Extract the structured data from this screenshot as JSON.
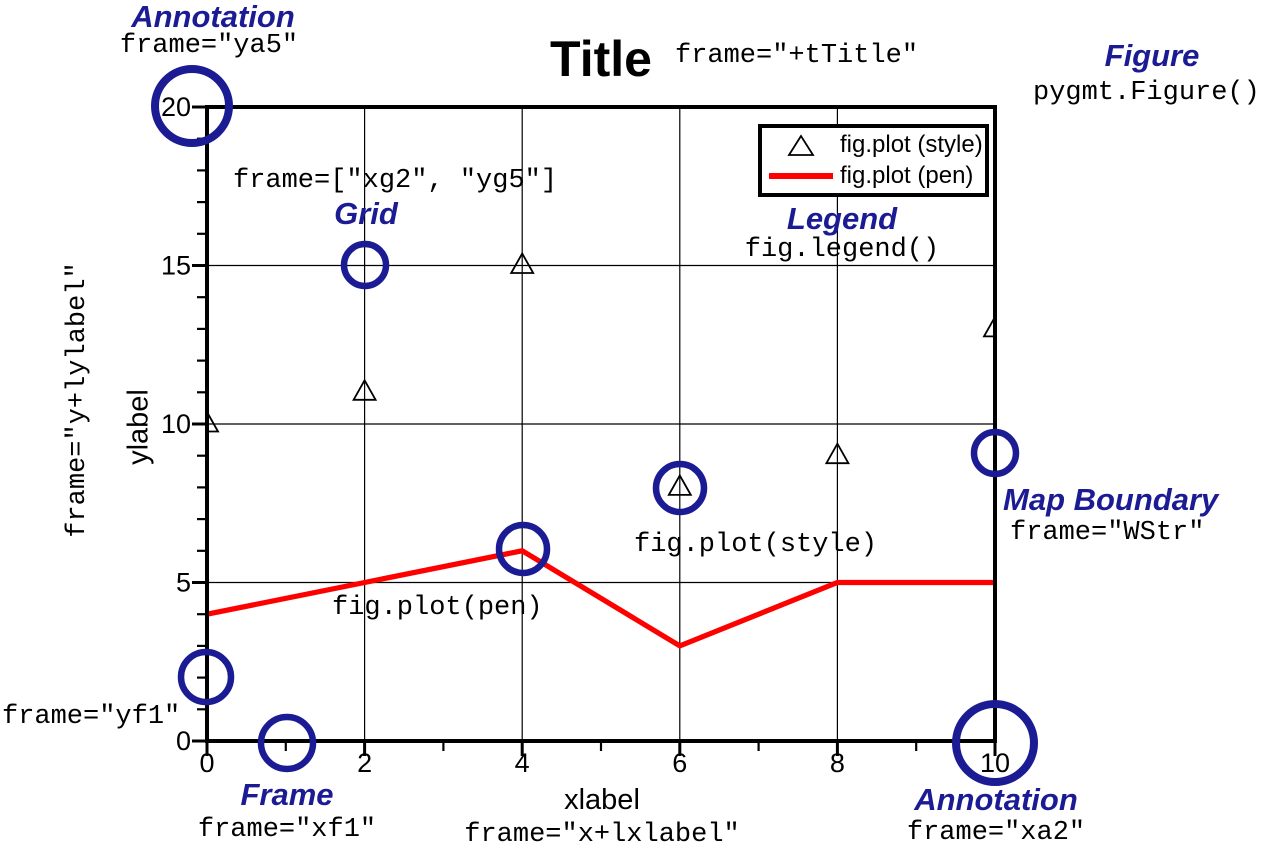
{
  "colors": {
    "annotation_blue": "#1b1b94",
    "pen_red": "#ff0000",
    "frame_black": "#000000"
  },
  "chart_data": {
    "type": "scatter",
    "title": "Title",
    "xlabel": "xlabel",
    "ylabel": "ylabel",
    "xlim": [
      0,
      10
    ],
    "ylim": [
      0,
      20
    ],
    "xticks": [
      0,
      2,
      4,
      6,
      8,
      10
    ],
    "yticks": [
      0,
      5,
      10,
      15,
      20
    ],
    "x_minor_tick_interval": 1,
    "y_minor_tick_interval": 1,
    "x_grid_interval": 2,
    "y_grid_interval": 5,
    "grid": true,
    "legend_position": "top-right",
    "x": [
      0,
      2,
      4,
      6,
      8,
      10
    ],
    "series": [
      {
        "name": "fig.plot (style)",
        "type": "scatter",
        "marker": "triangle-up",
        "color": "#000000",
        "values": [
          10,
          11,
          15,
          8,
          9,
          13
        ]
      },
      {
        "name": "fig.plot (pen)",
        "type": "line",
        "color": "#ff0000",
        "values": [
          4,
          5,
          6,
          3,
          5,
          5
        ]
      }
    ]
  },
  "annotations": {
    "top_left": {
      "label": "Annotation",
      "code": "frame=\"ya5\""
    },
    "title_code": "frame=\"+tTitle\"",
    "figure": {
      "label": "Figure",
      "code": "pygmt.Figure()"
    },
    "grid": {
      "label": "Grid",
      "code": "frame=[\"xg2\", \"yg5\"]"
    },
    "legend": {
      "label": "Legend",
      "code": "fig.legend()"
    },
    "map_boundary": {
      "label": "Map Boundary",
      "code": "frame=\"WStr\""
    },
    "ylabel_code": "frame=\"y+lylabel\"",
    "y_frame_code": "frame=\"yf1\"",
    "frame": {
      "label": "Frame",
      "code": "frame=\"xf1\""
    },
    "xlabel_code": "frame=\"x+lxlabel\"",
    "bottom_right": {
      "label": "Annotation",
      "code": "frame=\"xa2\""
    },
    "plot_style_code": "fig.plot(style)",
    "plot_pen_code": "fig.plot(pen)"
  }
}
